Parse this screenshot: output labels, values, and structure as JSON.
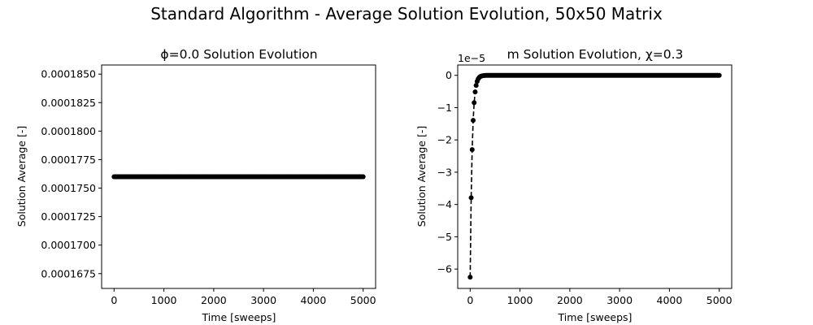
{
  "figure": {
    "suptitle": "Standard Algorithm - Average Solution Evolution, 50x50 Matrix"
  },
  "chart_data": [
    {
      "type": "line",
      "title": "ϕ=0.0 Solution Evolution",
      "xlabel": "Time [sweeps]",
      "ylabel": "Solution Average [-]",
      "xlim": [
        -250,
        5250
      ],
      "ylim": [
        0.0001662,
        0.0001858
      ],
      "xticks": [
        0,
        1000,
        2000,
        3000,
        4000,
        5000
      ],
      "xtick_labels": [
        "0",
        "1000",
        "2000",
        "3000",
        "4000",
        "5000"
      ],
      "yticks": [
        0.0001675,
        0.00017,
        0.0001725,
        0.000175,
        0.0001775,
        0.00018,
        0.0001825,
        0.000185
      ],
      "ytick_labels": [
        "0.0001675",
        "0.0001700",
        "0.0001725",
        "0.0001750",
        "0.0001775",
        "0.0001800",
        "0.0001825",
        "0.0001850"
      ],
      "grid": false,
      "series": [
        {
          "color": "#000000",
          "marker": "circle",
          "linestyle": "dashed",
          "x_start": 0,
          "x_end": 5000,
          "x_step": 20,
          "y_constant": 0.000176
        }
      ]
    },
    {
      "type": "line",
      "title": "m Solution Evolution, χ=0.3",
      "xlabel": "Time [sweeps]",
      "ylabel": "Solution Average [-]",
      "offset_text": "1e−5",
      "xlim": [
        -250,
        5250
      ],
      "ylim": [
        -6.6,
        0.32
      ],
      "xticks": [
        0,
        1000,
        2000,
        3000,
        4000,
        5000
      ],
      "xtick_labels": [
        "0",
        "1000",
        "2000",
        "3000",
        "4000",
        "5000"
      ],
      "yticks": [
        -6,
        -5,
        -4,
        -3,
        -2,
        -1,
        0
      ],
      "ytick_labels": [
        "−6",
        "−5",
        "−4",
        "−3",
        "−2",
        "−1",
        "0"
      ],
      "grid": false,
      "series": [
        {
          "color": "#000000",
          "marker": "circle",
          "linestyle": "dashed",
          "x_start": 0,
          "x_end": 5000,
          "x_step": 20,
          "y_initial": -6.25,
          "decay_time_constant": 40
        }
      ]
    }
  ]
}
